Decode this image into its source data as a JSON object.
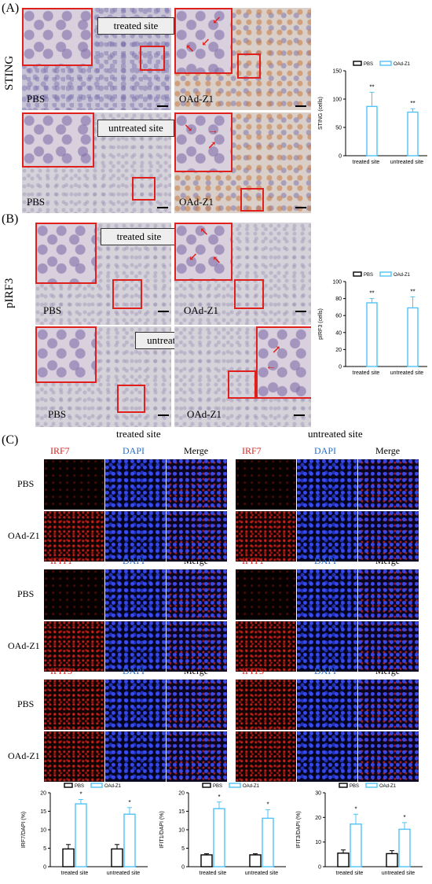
{
  "panels": {
    "A": {
      "label": "(A)",
      "side_label": "STING"
    },
    "B": {
      "label": "(B)",
      "side_label": "pIRF3"
    },
    "C": {
      "label": "(C)"
    }
  },
  "ihc": {
    "treated_site": "treated site",
    "untreated_site": "untreated site",
    "pbs": "PBS",
    "oad": "OAd-Z1"
  },
  "fluor": {
    "col_headers": {
      "treated": "treated site",
      "untreated": "untreated site"
    },
    "dapi": "DAPI",
    "merge": "Merge",
    "rows": {
      "pbs": "PBS",
      "oad": "OAd-Z1"
    },
    "markers": [
      "IRF7",
      "IFIT1",
      "IFIT3"
    ]
  },
  "colors": {
    "pbs": "#000000",
    "oad": "#4fc3f7",
    "roi": "#e0201c"
  },
  "chart_data": [
    {
      "type": "bar",
      "categories": [
        "treated site",
        "untreated site"
      ],
      "series": [
        {
          "name": "PBS",
          "values": [
            0,
            0
          ],
          "errors": [
            0,
            0
          ]
        },
        {
          "name": "OAd-Z1",
          "values": [
            87,
            77
          ],
          "errors": [
            25,
            6
          ]
        }
      ],
      "ylabel": "STING (cells)",
      "ylim": [
        0,
        150
      ],
      "yticks": [
        0,
        50,
        100,
        150
      ],
      "annotations": [
        "**",
        "**"
      ],
      "legend": "top"
    },
    {
      "type": "bar",
      "categories": [
        "treated site",
        "untreated site"
      ],
      "series": [
        {
          "name": "PBS",
          "values": [
            0,
            0
          ],
          "errors": [
            0,
            0
          ]
        },
        {
          "name": "OAd-Z1",
          "values": [
            75,
            69
          ],
          "errors": [
            5,
            13
          ]
        }
      ],
      "ylabel": "pIRF3 (cells)",
      "ylim": [
        0,
        100
      ],
      "yticks": [
        0,
        20,
        40,
        60,
        80,
        100
      ],
      "annotations": [
        "**",
        "**"
      ],
      "legend": "top"
    },
    {
      "type": "bar",
      "categories": [
        "treated site",
        "untreated site"
      ],
      "series": [
        {
          "name": "PBS",
          "values": [
            4.8,
            4.8
          ],
          "errors": [
            1.2,
            1.2
          ]
        },
        {
          "name": "OAd-Z1",
          "values": [
            17,
            14.2
          ],
          "errors": [
            1.2,
            1.8
          ]
        }
      ],
      "ylabel": "IRF7/DAPI (%)",
      "ylim": [
        0,
        20
      ],
      "yticks": [
        0,
        5,
        10,
        15,
        20
      ],
      "annotations": [
        "*",
        "*"
      ],
      "legend": "top"
    },
    {
      "type": "bar",
      "categories": [
        "treated site",
        "untreated site"
      ],
      "series": [
        {
          "name": "PBS",
          "values": [
            3.2,
            3.2
          ],
          "errors": [
            0.3,
            0.3
          ]
        },
        {
          "name": "OAd-Z1",
          "values": [
            15.7,
            13.1
          ],
          "errors": [
            1.8,
            2.3
          ]
        }
      ],
      "ylabel": "IFIT1/DAPI (%)",
      "ylim": [
        0,
        20
      ],
      "yticks": [
        0,
        5,
        10,
        15,
        20
      ],
      "annotations": [
        "*",
        "*"
      ],
      "legend": "top"
    },
    {
      "type": "bar",
      "categories": [
        "treated site",
        "untreated site"
      ],
      "series": [
        {
          "name": "PBS",
          "values": [
            5.5,
            5.3
          ],
          "errors": [
            1.3,
            1.2
          ]
        },
        {
          "name": "OAd-Z1",
          "values": [
            17.3,
            15.2
          ],
          "errors": [
            4,
            2.7
          ]
        }
      ],
      "ylabel": "IFIT3/DAPI (%)",
      "ylim": [
        0,
        30
      ],
      "yticks": [
        0,
        10,
        20,
        30
      ],
      "annotations": [
        "*",
        "*"
      ],
      "legend": "top"
    }
  ]
}
